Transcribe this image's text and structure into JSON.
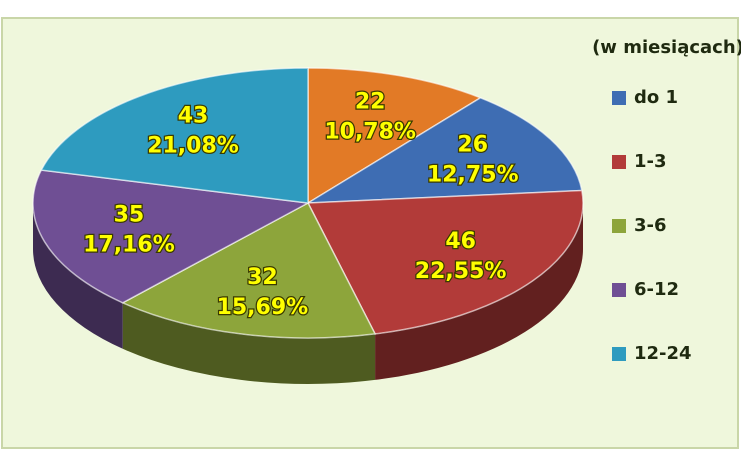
{
  "chart_data": {
    "type": "pie3d",
    "legend_title": "(w miesiącach)",
    "categories": [
      null,
      "do 1",
      "1-3",
      "3-6",
      "6-12",
      "12-24"
    ],
    "values": [
      22,
      26,
      46,
      32,
      35,
      43
    ],
    "percent_labels": [
      "10,78%",
      "12,75%",
      "22,55%",
      "15,69%",
      "17,16%",
      "21,08%"
    ],
    "colors": [
      "#e27a26",
      "#3e6db3",
      "#b23b39",
      "#8da53b",
      "#6f4f94",
      "#2e9bbf"
    ],
    "legend": "right"
  }
}
